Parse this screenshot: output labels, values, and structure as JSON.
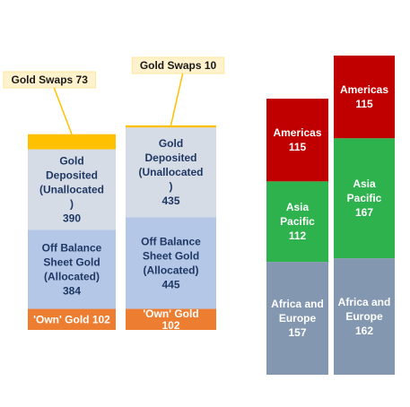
{
  "chart_data": [
    {
      "type": "stacked-bar",
      "columns": [
        {
          "segments": [
            {
              "label": "'Own' Gold",
              "value": 102,
              "color": "#ED7D31",
              "text_color": "#ffffff"
            },
            {
              "label": "Off Balance Sheet Gold (Allocated)",
              "value": 384,
              "color": "#B4C7E7",
              "text_color": "#1F3864"
            },
            {
              "label": "Gold Deposited (Unallocated)",
              "value": 390,
              "color": "#D6DCE5",
              "text_color": "#1F3864"
            },
            {
              "label": "Gold Swaps",
              "value": 73,
              "color": "#FFC000",
              "text_color": "#1a1a1a"
            }
          ]
        },
        {
          "segments": [
            {
              "label": "'Own' Gold",
              "value": 102,
              "color": "#ED7D31",
              "text_color": "#ffffff"
            },
            {
              "label": "Off Balance Sheet Gold (Allocated)",
              "value": 445,
              "color": "#B4C7E7",
              "text_color": "#1F3864"
            },
            {
              "label": "Gold Deposited (Unallocated)",
              "value": 435,
              "color": "#D6DCE5",
              "text_color": "#1F3864"
            },
            {
              "label": "Gold Swaps",
              "value": 10,
              "color": "#FFC000",
              "text_color": "#1a1a1a"
            }
          ]
        }
      ]
    },
    {
      "type": "stacked-bar",
      "columns": [
        {
          "segments": [
            {
              "label": "Africa and Europe",
              "value": 157,
              "color": "#8497B0",
              "text_color": "#ffffff"
            },
            {
              "label": "Asia Pacific",
              "value": 112,
              "color": "#2EB24E",
              "text_color": "#ffffff"
            },
            {
              "label": "Americas",
              "value": 115,
              "color": "#C00000",
              "text_color": "#ffffff"
            }
          ]
        },
        {
          "segments": [
            {
              "label": "Africa and Europe",
              "value": 162,
              "color": "#8497B0",
              "text_color": "#ffffff"
            },
            {
              "label": "Asia Pacific",
              "value": 167,
              "color": "#2EB24E",
              "text_color": "#ffffff"
            },
            {
              "label": "Americas",
              "value": 115,
              "color": "#C00000",
              "text_color": "#ffffff"
            }
          ]
        }
      ]
    }
  ]
}
